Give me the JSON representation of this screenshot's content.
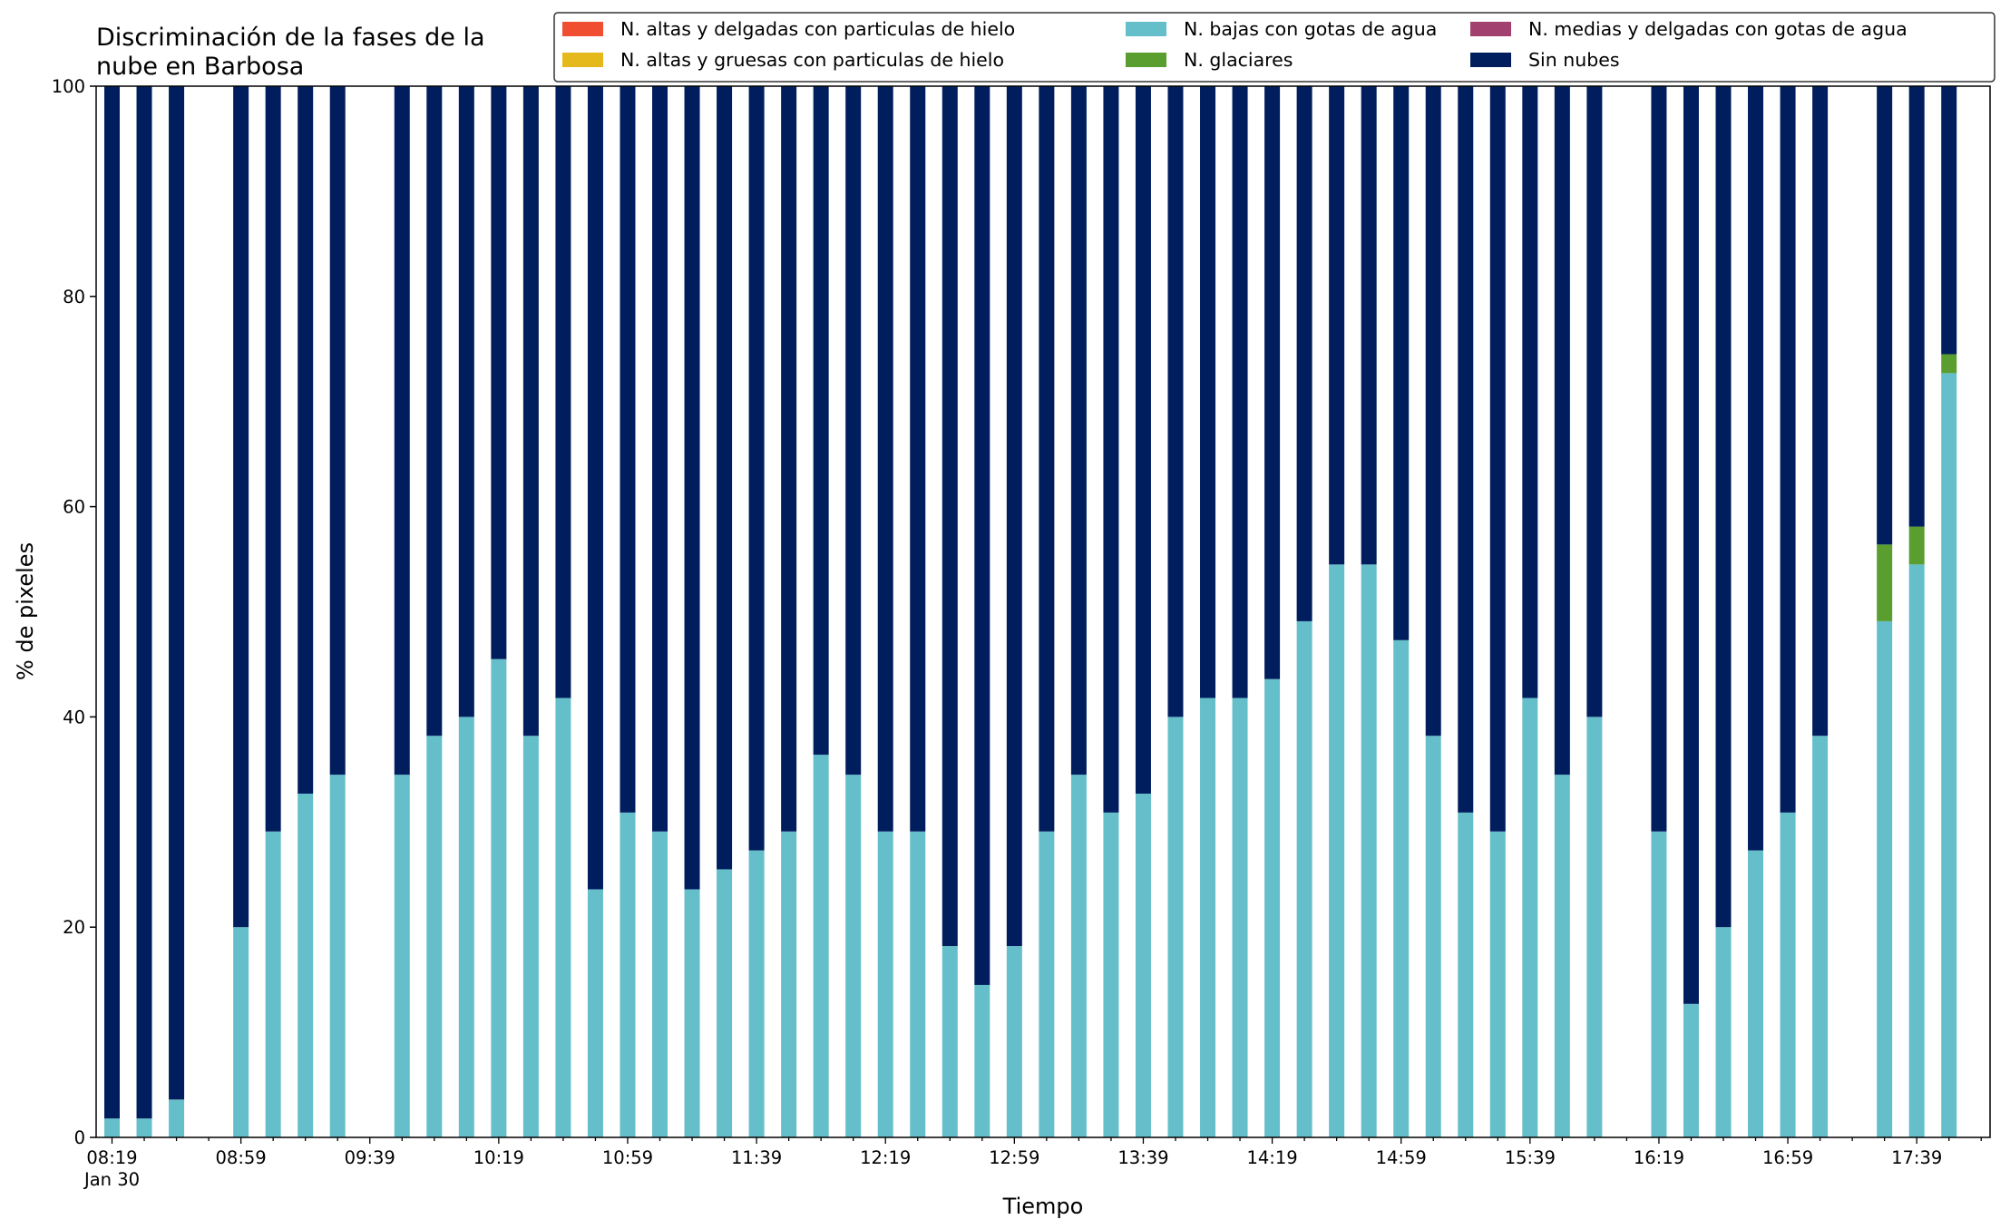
{
  "chart_data": {
    "type": "bar",
    "stacked": true,
    "title_lines": [
      "Discriminación de la fases de la",
      "nube en Barbosa"
    ],
    "xlabel": "Tiempo",
    "ylabel": "% de pixeles",
    "ylim": [
      0,
      100
    ],
    "yticks": [
      "0",
      "20",
      "40",
      "60",
      "80",
      "100"
    ],
    "xtick_labels": [
      "08:19",
      "08:59",
      "09:39",
      "10:19",
      "10:59",
      "11:39",
      "12:19",
      "12:59",
      "13:39",
      "14:19",
      "14:59",
      "15:39",
      "16:19",
      "16:59",
      "17:39"
    ],
    "xtick_sublabel": "Jan 30",
    "grid": false,
    "legend_position": "top-right",
    "slots": [
      "08:19",
      "08:29",
      "08:39",
      "08:49",
      "08:59",
      "09:09",
      "09:19",
      "09:29",
      "09:39",
      "09:49",
      "09:59",
      "10:09",
      "10:19",
      "10:29",
      "10:39",
      "10:49",
      "10:59",
      "11:09",
      "11:19",
      "11:29",
      "11:39",
      "11:49",
      "11:59",
      "12:09",
      "12:19",
      "12:29",
      "12:39",
      "12:49",
      "12:59",
      "13:09",
      "13:19",
      "13:29",
      "13:39",
      "13:49",
      "13:59",
      "14:09",
      "14:19",
      "14:29",
      "14:39",
      "14:49",
      "14:59",
      "15:09",
      "15:19",
      "15:29",
      "15:39",
      "15:49",
      "15:59",
      "16:09",
      "16:19",
      "16:29",
      "16:39",
      "16:49",
      "16:59",
      "17:09",
      "17:19",
      "17:29",
      "17:39",
      "17:49"
    ],
    "series": [
      {
        "name": "N. altas y delgadas con particulas de hielo",
        "color": "#f04e30",
        "values": [
          0,
          0,
          0,
          null,
          0,
          0,
          0,
          0,
          null,
          0,
          0,
          0,
          0,
          0,
          0,
          0,
          0,
          0,
          0,
          0,
          0,
          0,
          0,
          0,
          0,
          0,
          0,
          0,
          0,
          0,
          0,
          0,
          0,
          0,
          0,
          0,
          0,
          0,
          0,
          0,
          0,
          0,
          0,
          0,
          0,
          0,
          0,
          null,
          0,
          0,
          0,
          0,
          0,
          0,
          null,
          0,
          0,
          0
        ]
      },
      {
        "name": "N. altas y gruesas con particulas de hielo",
        "color": "#e5b91c",
        "values": [
          0,
          0,
          0,
          null,
          0,
          0,
          0,
          0,
          null,
          0,
          0,
          0,
          0,
          0,
          0,
          0,
          0,
          0,
          0,
          0,
          0,
          0,
          0,
          0,
          0,
          0,
          0,
          0,
          0,
          0,
          0,
          0,
          0,
          0,
          0,
          0,
          0,
          0,
          0,
          0,
          0,
          0,
          0,
          0,
          0,
          0,
          0,
          null,
          0,
          0,
          0,
          0,
          0,
          0,
          null,
          0,
          0,
          0
        ]
      },
      {
        "name": "N. bajas con gotas de agua",
        "color": "#65bfcb",
        "values": [
          1.8,
          1.8,
          3.6,
          null,
          20,
          29.1,
          32.7,
          34.5,
          null,
          34.5,
          38.2,
          40,
          45.5,
          38.2,
          41.8,
          23.6,
          30.9,
          29.1,
          23.6,
          25.5,
          27.3,
          29.1,
          36.4,
          34.5,
          29.1,
          29.1,
          18.2,
          14.5,
          18.2,
          29.1,
          34.5,
          30.9,
          32.7,
          40,
          41.8,
          41.8,
          43.6,
          49.1,
          54.5,
          54.5,
          47.3,
          38.2,
          30.9,
          29.1,
          41.8,
          34.5,
          40,
          null,
          29.1,
          12.7,
          20,
          27.3,
          30.9,
          38.2,
          null,
          49.1,
          54.5,
          72.7
        ]
      },
      {
        "name": "N. glaciares",
        "color": "#5a9e2f",
        "values": [
          0,
          0,
          0,
          null,
          0,
          0,
          0,
          0,
          null,
          0,
          0,
          0,
          0,
          0,
          0,
          0,
          0,
          0,
          0,
          0,
          0,
          0,
          0,
          0,
          0,
          0,
          0,
          0,
          0,
          0,
          0,
          0,
          0,
          0,
          0,
          0,
          0,
          0,
          0,
          0,
          0,
          0,
          0,
          0,
          0,
          0,
          0,
          null,
          0,
          0,
          0,
          0,
          0,
          0,
          null,
          7.3,
          3.6,
          1.8
        ]
      },
      {
        "name": "N. medias y delgadas con gotas de agua",
        "color": "#a2416f",
        "values": [
          0,
          0,
          0,
          null,
          0,
          0,
          0,
          0,
          null,
          0,
          0,
          0,
          0,
          0,
          0,
          0,
          0,
          0,
          0,
          0,
          0,
          0,
          0,
          0,
          0,
          0,
          0,
          0,
          0,
          0,
          0,
          0,
          0,
          0,
          0,
          0,
          0,
          0,
          0,
          0,
          0,
          0,
          0,
          0,
          0,
          0,
          0,
          null,
          0,
          0,
          0,
          0,
          0,
          0,
          null,
          0,
          0,
          0
        ]
      },
      {
        "name": "Sin nubes",
        "color": "#001e5e",
        "values": [
          98.2,
          98.2,
          96.4,
          null,
          80,
          70.9,
          67.3,
          65.5,
          null,
          65.5,
          61.8,
          60,
          54.5,
          61.8,
          58.2,
          76.4,
          69.1,
          70.9,
          76.4,
          74.5,
          72.7,
          70.9,
          63.6,
          65.5,
          70.9,
          70.9,
          81.8,
          85.5,
          81.8,
          70.9,
          65.5,
          69.1,
          67.3,
          60,
          58.2,
          58.2,
          56.4,
          50.9,
          45.5,
          45.5,
          52.7,
          61.8,
          69.1,
          70.9,
          58.2,
          65.5,
          60,
          null,
          70.9,
          87.3,
          80,
          72.7,
          69.1,
          61.8,
          null,
          43.6,
          41.9,
          25.5
        ]
      }
    ]
  }
}
